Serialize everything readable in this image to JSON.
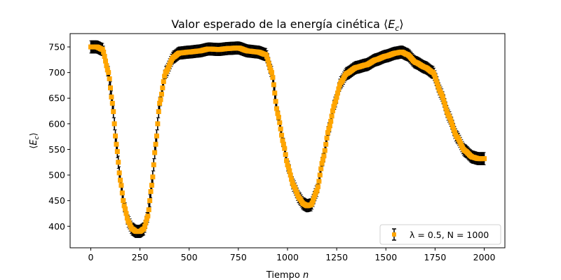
{
  "chart_data": {
    "type": "scatter",
    "title": "Valor esperado de la energía cinética ⟨E_c⟩",
    "title_parts": {
      "prefix": "Valor esperado de la energía cinética ⟨",
      "var": "E",
      "sub": "c",
      "suffix": "⟩"
    },
    "xlabel": "Tiempo n",
    "xlabel_parts": {
      "prefix": "Tiempo ",
      "var": "n"
    },
    "ylabel": "⟨E_c⟩",
    "ylabel_parts": {
      "prefix": "⟨",
      "var": "E",
      "sub": "c",
      "suffix": "⟩"
    },
    "xlim": [
      -105,
      2105
    ],
    "ylim": [
      358,
      776
    ],
    "x_ticks": [
      0,
      250,
      500,
      750,
      1000,
      1250,
      1500,
      1750,
      2000
    ],
    "x_tick_labels": [
      "0",
      "250",
      "500",
      "750",
      "1000",
      "1250",
      "1500",
      "1750",
      "2000"
    ],
    "y_ticks": [
      400,
      450,
      500,
      550,
      600,
      650,
      700,
      750
    ],
    "y_tick_labels": [
      "400",
      "450",
      "500",
      "550",
      "600",
      "650",
      "700",
      "750"
    ],
    "grid": false,
    "legend_position": "lower-right",
    "colors": {
      "marker": "#FFA500",
      "errorbar": "#000000"
    },
    "series": [
      {
        "name": "λ = 0.5, N = 1000",
        "error": 12,
        "points": [
          [
            0,
            750
          ],
          [
            30,
            750
          ],
          [
            60,
            745
          ],
          [
            90,
            700
          ],
          [
            110,
            640
          ],
          [
            130,
            560
          ],
          [
            150,
            490
          ],
          [
            170,
            440
          ],
          [
            190,
            410
          ],
          [
            210,
            395
          ],
          [
            230,
            390
          ],
          [
            250,
            390
          ],
          [
            270,
            395
          ],
          [
            290,
            420
          ],
          [
            310,
            480
          ],
          [
            330,
            560
          ],
          [
            350,
            640
          ],
          [
            380,
            700
          ],
          [
            420,
            730
          ],
          [
            450,
            738
          ],
          [
            500,
            740
          ],
          [
            550,
            742
          ],
          [
            600,
            746
          ],
          [
            650,
            745
          ],
          [
            700,
            747
          ],
          [
            750,
            748
          ],
          [
            800,
            742
          ],
          [
            850,
            740
          ],
          [
            890,
            735
          ],
          [
            920,
            700
          ],
          [
            950,
            620
          ],
          [
            980,
            560
          ],
          [
            1000,
            520
          ],
          [
            1030,
            480
          ],
          [
            1060,
            455
          ],
          [
            1080,
            444
          ],
          [
            1100,
            440
          ],
          [
            1120,
            442
          ],
          [
            1150,
            470
          ],
          [
            1180,
            530
          ],
          [
            1210,
            590
          ],
          [
            1240,
            640
          ],
          [
            1270,
            680
          ],
          [
            1300,
            698
          ],
          [
            1350,
            710
          ],
          [
            1400,
            715
          ],
          [
            1450,
            725
          ],
          [
            1500,
            732
          ],
          [
            1550,
            738
          ],
          [
            1580,
            740
          ],
          [
            1610,
            735
          ],
          [
            1650,
            720
          ],
          [
            1700,
            710
          ],
          [
            1740,
            700
          ],
          [
            1780,
            660
          ],
          [
            1820,
            615
          ],
          [
            1860,
            575
          ],
          [
            1900,
            548
          ],
          [
            1940,
            535
          ],
          [
            1970,
            532
          ],
          [
            2000,
            532
          ]
        ]
      }
    ]
  }
}
